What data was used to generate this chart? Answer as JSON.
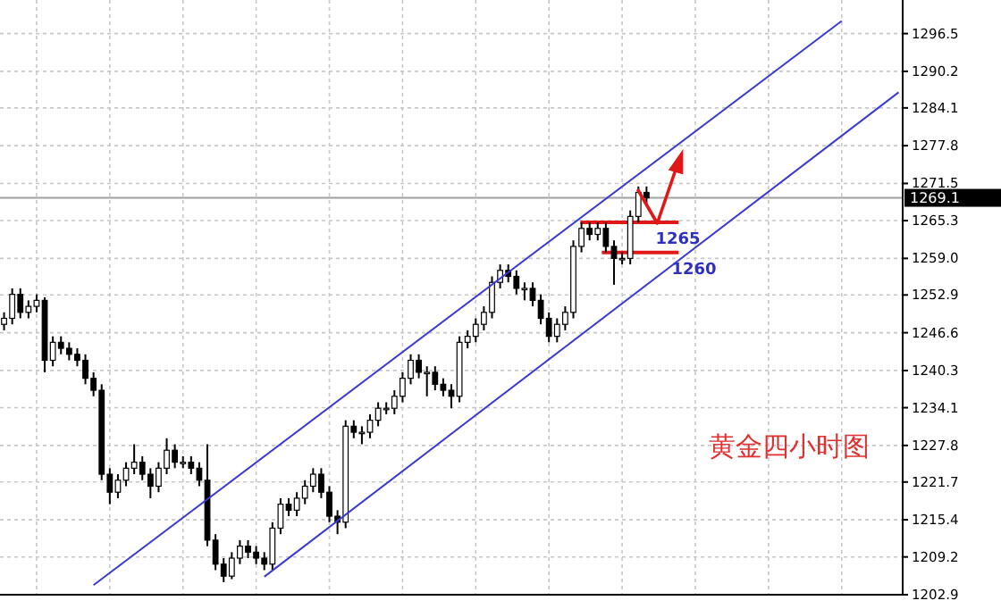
{
  "chart_data": {
    "type": "candlestick",
    "ylim": [
      1202.9,
      1302.1
    ],
    "yticks": [
      1202.9,
      1209.2,
      1215.4,
      1221.7,
      1227.8,
      1234.1,
      1240.3,
      1246.6,
      1252.9,
      {
        "value": 1259,
        "label": "1259.0"
      },
      1265.3,
      1271.5,
      1277.8,
      1284.1,
      1290.2,
      1296.5
    ],
    "categories": [
      null,
      null,
      null,
      null,
      null,
      null,
      null,
      null,
      null,
      null,
      null,
      null,
      null,
      null,
      null,
      null,
      null,
      null,
      null,
      null,
      null,
      null,
      null,
      null,
      null,
      null,
      null,
      null,
      null,
      null,
      null,
      null,
      null,
      null,
      null,
      null,
      null,
      null,
      null,
      null,
      null,
      null,
      null,
      null,
      null,
      null,
      null,
      null,
      null,
      null,
      null,
      null,
      null,
      null,
      null,
      null,
      null,
      null,
      null,
      null,
      null,
      null,
      null,
      null,
      null,
      null,
      null,
      null,
      null,
      null,
      null,
      null,
      null,
      null,
      null,
      null,
      null,
      null,
      null,
      null,
      null,
      null,
      null,
      null,
      null,
      null,
      null,
      null,
      null,
      null,
      null,
      null,
      null,
      null,
      null,
      null,
      null,
      null,
      null,
      null,
      null,
      null,
      null,
      null,
      null,
      null,
      null,
      null,
      null,
      null,
      null
    ],
    "tick_labels": "y",
    "grid": true,
    "series": [
      {
        "color": "#000000",
        "ohlc": [
          [
            1248,
            1250,
            1247,
            1249
          ],
          [
            1249,
            1254,
            1248,
            1253
          ],
          [
            1253,
            1254,
            1249,
            1250
          ],
          [
            1250,
            1252,
            1249,
            1251
          ],
          [
            1251,
            1253,
            1250,
            1252
          ],
          [
            1252,
            1252.5,
            1240,
            1242
          ],
          [
            1242,
            1246,
            1241,
            1245
          ],
          [
            1245,
            1246,
            1243,
            1244
          ],
          [
            1244,
            1245,
            1242,
            1243
          ],
          [
            1243,
            1244,
            1241,
            1242
          ],
          [
            1242,
            1243,
            1238,
            1239
          ],
          [
            1239,
            1240,
            1236,
            1237
          ],
          [
            1237,
            1238,
            1222,
            1223
          ],
          [
            1223,
            1224,
            1218,
            1220
          ],
          [
            1220,
            1223,
            1219,
            1222
          ],
          [
            1222,
            1225,
            1221,
            1224
          ],
          [
            1224,
            1228,
            1223,
            1225
          ],
          [
            1225,
            1226,
            1222,
            1223
          ],
          [
            1223,
            1224,
            1219,
            1221
          ],
          [
            1221,
            1225,
            1220,
            1224
          ],
          [
            1224,
            1229,
            1223,
            1227
          ],
          [
            1227,
            1228,
            1224,
            1225
          ],
          [
            1225,
            1226,
            1224,
            1225
          ],
          [
            1225,
            1226,
            1223,
            1224
          ],
          [
            1224,
            1225,
            1221,
            1222
          ],
          [
            1222,
            1228,
            1211,
            1212
          ],
          [
            1212,
            1213,
            1207,
            1208
          ],
          [
            1208,
            1209,
            1205,
            1206
          ],
          [
            1206,
            1210,
            1205.5,
            1209
          ],
          [
            1209,
            1212,
            1208,
            1211
          ],
          [
            1211,
            1212,
            1209,
            1210
          ],
          [
            1210,
            1211,
            1208,
            1209
          ],
          [
            1209,
            1210,
            1207,
            1208
          ],
          [
            1208,
            1215,
            1207,
            1214
          ],
          [
            1214,
            1219,
            1213,
            1218
          ],
          [
            1218,
            1219,
            1216,
            1217
          ],
          [
            1217,
            1220,
            1216,
            1219
          ],
          [
            1219,
            1222,
            1218,
            1221
          ],
          [
            1221,
            1224,
            1220,
            1223
          ],
          [
            1223,
            1224,
            1219,
            1220
          ],
          [
            1220,
            1221,
            1215,
            1216
          ],
          [
            1216,
            1217,
            1213,
            1215
          ],
          [
            1215,
            1232,
            1214,
            1231
          ],
          [
            1231,
            1232,
            1229,
            1230
          ],
          [
            1230,
            1231,
            1228,
            1230
          ],
          [
            1230,
            1233,
            1229,
            1232
          ],
          [
            1232,
            1235,
            1231,
            1234
          ],
          [
            1234,
            1235,
            1233,
            1234
          ],
          [
            1234,
            1237,
            1233,
            1236
          ],
          [
            1236,
            1240,
            1235,
            1239
          ],
          [
            1239,
            1243,
            1238,
            1242
          ],
          [
            1242,
            1243,
            1239,
            1240
          ],
          [
            1240,
            1241,
            1236,
            1240
          ],
          [
            1240,
            1241,
            1237,
            1238
          ],
          [
            1238,
            1239,
            1236,
            1237
          ],
          [
            1237,
            1238,
            1234,
            1236
          ],
          [
            1236,
            1246,
            1235,
            1245
          ],
          [
            1245,
            1247,
            1244,
            1246
          ],
          [
            1246,
            1249,
            1245,
            1248
          ],
          [
            1248,
            1251,
            1247,
            1250
          ],
          [
            1250,
            1256,
            1249,
            1255
          ],
          [
            1255,
            1258,
            1254,
            1257
          ],
          [
            1257,
            1258,
            1255,
            1256
          ],
          [
            1256,
            1257,
            1253,
            1254
          ],
          [
            1254,
            1255,
            1252,
            1254
          ],
          [
            1254,
            1255,
            1251,
            1252
          ],
          [
            1252,
            1253,
            1248,
            1249
          ],
          [
            1249,
            1250,
            1245,
            1246
          ],
          [
            1246,
            1249,
            1245,
            1248
          ],
          [
            1248,
            1251,
            1247,
            1250
          ],
          [
            1250,
            1262,
            1249,
            1261
          ],
          [
            1261,
            1265,
            1260,
            1264
          ],
          [
            1264,
            1265,
            1262,
            1263
          ],
          [
            1263,
            1265,
            1262,
            1264
          ],
          [
            1264,
            1265,
            1260,
            1261
          ],
          [
            1261,
            1262,
            1254.6,
            1259
          ],
          [
            1259,
            1260,
            1258,
            1259
          ],
          [
            1259,
            1267,
            1258,
            1266
          ],
          [
            1266,
            1271,
            1265,
            1270
          ],
          [
            1270,
            1271,
            1268,
            1269.1
          ],
          null,
          null,
          null,
          null,
          null,
          null,
          null,
          null,
          null,
          null,
          null,
          null,
          null,
          null,
          null,
          null,
          null,
          null,
          null,
          null,
          null,
          null,
          null,
          null,
          null,
          null,
          null,
          null,
          null,
          null,
          null
        ]
      },
      {
        "type": "line",
        "color": "#3a3ad0",
        "values": [
          null,
          null,
          null,
          null,
          null,
          null,
          null,
          null,
          null,
          null,
          null,
          1204.5,
          null,
          null,
          null,
          null,
          null,
          null,
          null,
          null,
          null,
          null,
          null,
          null,
          null,
          null,
          null,
          null,
          null,
          null,
          null,
          null,
          null,
          null,
          null,
          null,
          null,
          null,
          null,
          null,
          null,
          null,
          null,
          null,
          null,
          null,
          null,
          null,
          null,
          null,
          null,
          null,
          null,
          null,
          null,
          null,
          null,
          null,
          null,
          null,
          null,
          null,
          null,
          null,
          null,
          null,
          null,
          null,
          null,
          null,
          null,
          null,
          null,
          null,
          null,
          null,
          null,
          null,
          null,
          null,
          null,
          null,
          null,
          null,
          null,
          null,
          null,
          null,
          null,
          null,
          null,
          null,
          null,
          null,
          null,
          null,
          null,
          null,
          null,
          null,
          null,
          null,
          null,
          1298.6,
          null,
          null,
          null,
          null,
          null,
          null,
          null
        ]
      },
      {
        "type": "line",
        "color": "#3a3ad0",
        "values": [
          null,
          null,
          null,
          null,
          null,
          null,
          null,
          null,
          null,
          null,
          null,
          null,
          null,
          null,
          null,
          null,
          null,
          null,
          null,
          null,
          null,
          null,
          null,
          null,
          null,
          null,
          null,
          null,
          null,
          null,
          null,
          null,
          1205.9,
          null,
          null,
          null,
          null,
          null,
          null,
          null,
          null,
          null,
          null,
          null,
          null,
          null,
          null,
          null,
          null,
          null,
          null,
          null,
          null,
          null,
          null,
          null,
          null,
          null,
          null,
          null,
          null,
          null,
          null,
          null,
          null,
          null,
          null,
          null,
          null,
          null,
          null,
          null,
          null,
          null,
          null,
          null,
          null,
          null,
          null,
          null,
          null,
          null,
          null,
          null,
          null,
          null,
          null,
          null,
          null,
          null,
          null,
          null,
          null,
          null,
          null,
          null,
          null,
          null,
          null,
          null,
          null,
          null,
          null,
          null,
          null,
          null,
          null,
          null,
          null,
          null,
          1286.7
        ]
      }
    ],
    "ref_lines": [
      {
        "axis": "y",
        "value": 1269.1,
        "label": "1269.1",
        "color": "#a0a0a0"
      },
      {
        "axis": "y",
        "value": 1265,
        "label": "1265",
        "color": "#e01818"
      },
      {
        "axis": "y",
        "value": 1260,
        "label": "1260",
        "color": "#e01818"
      }
    ],
    "annotations": [
      "黄金四小时图"
    ]
  }
}
